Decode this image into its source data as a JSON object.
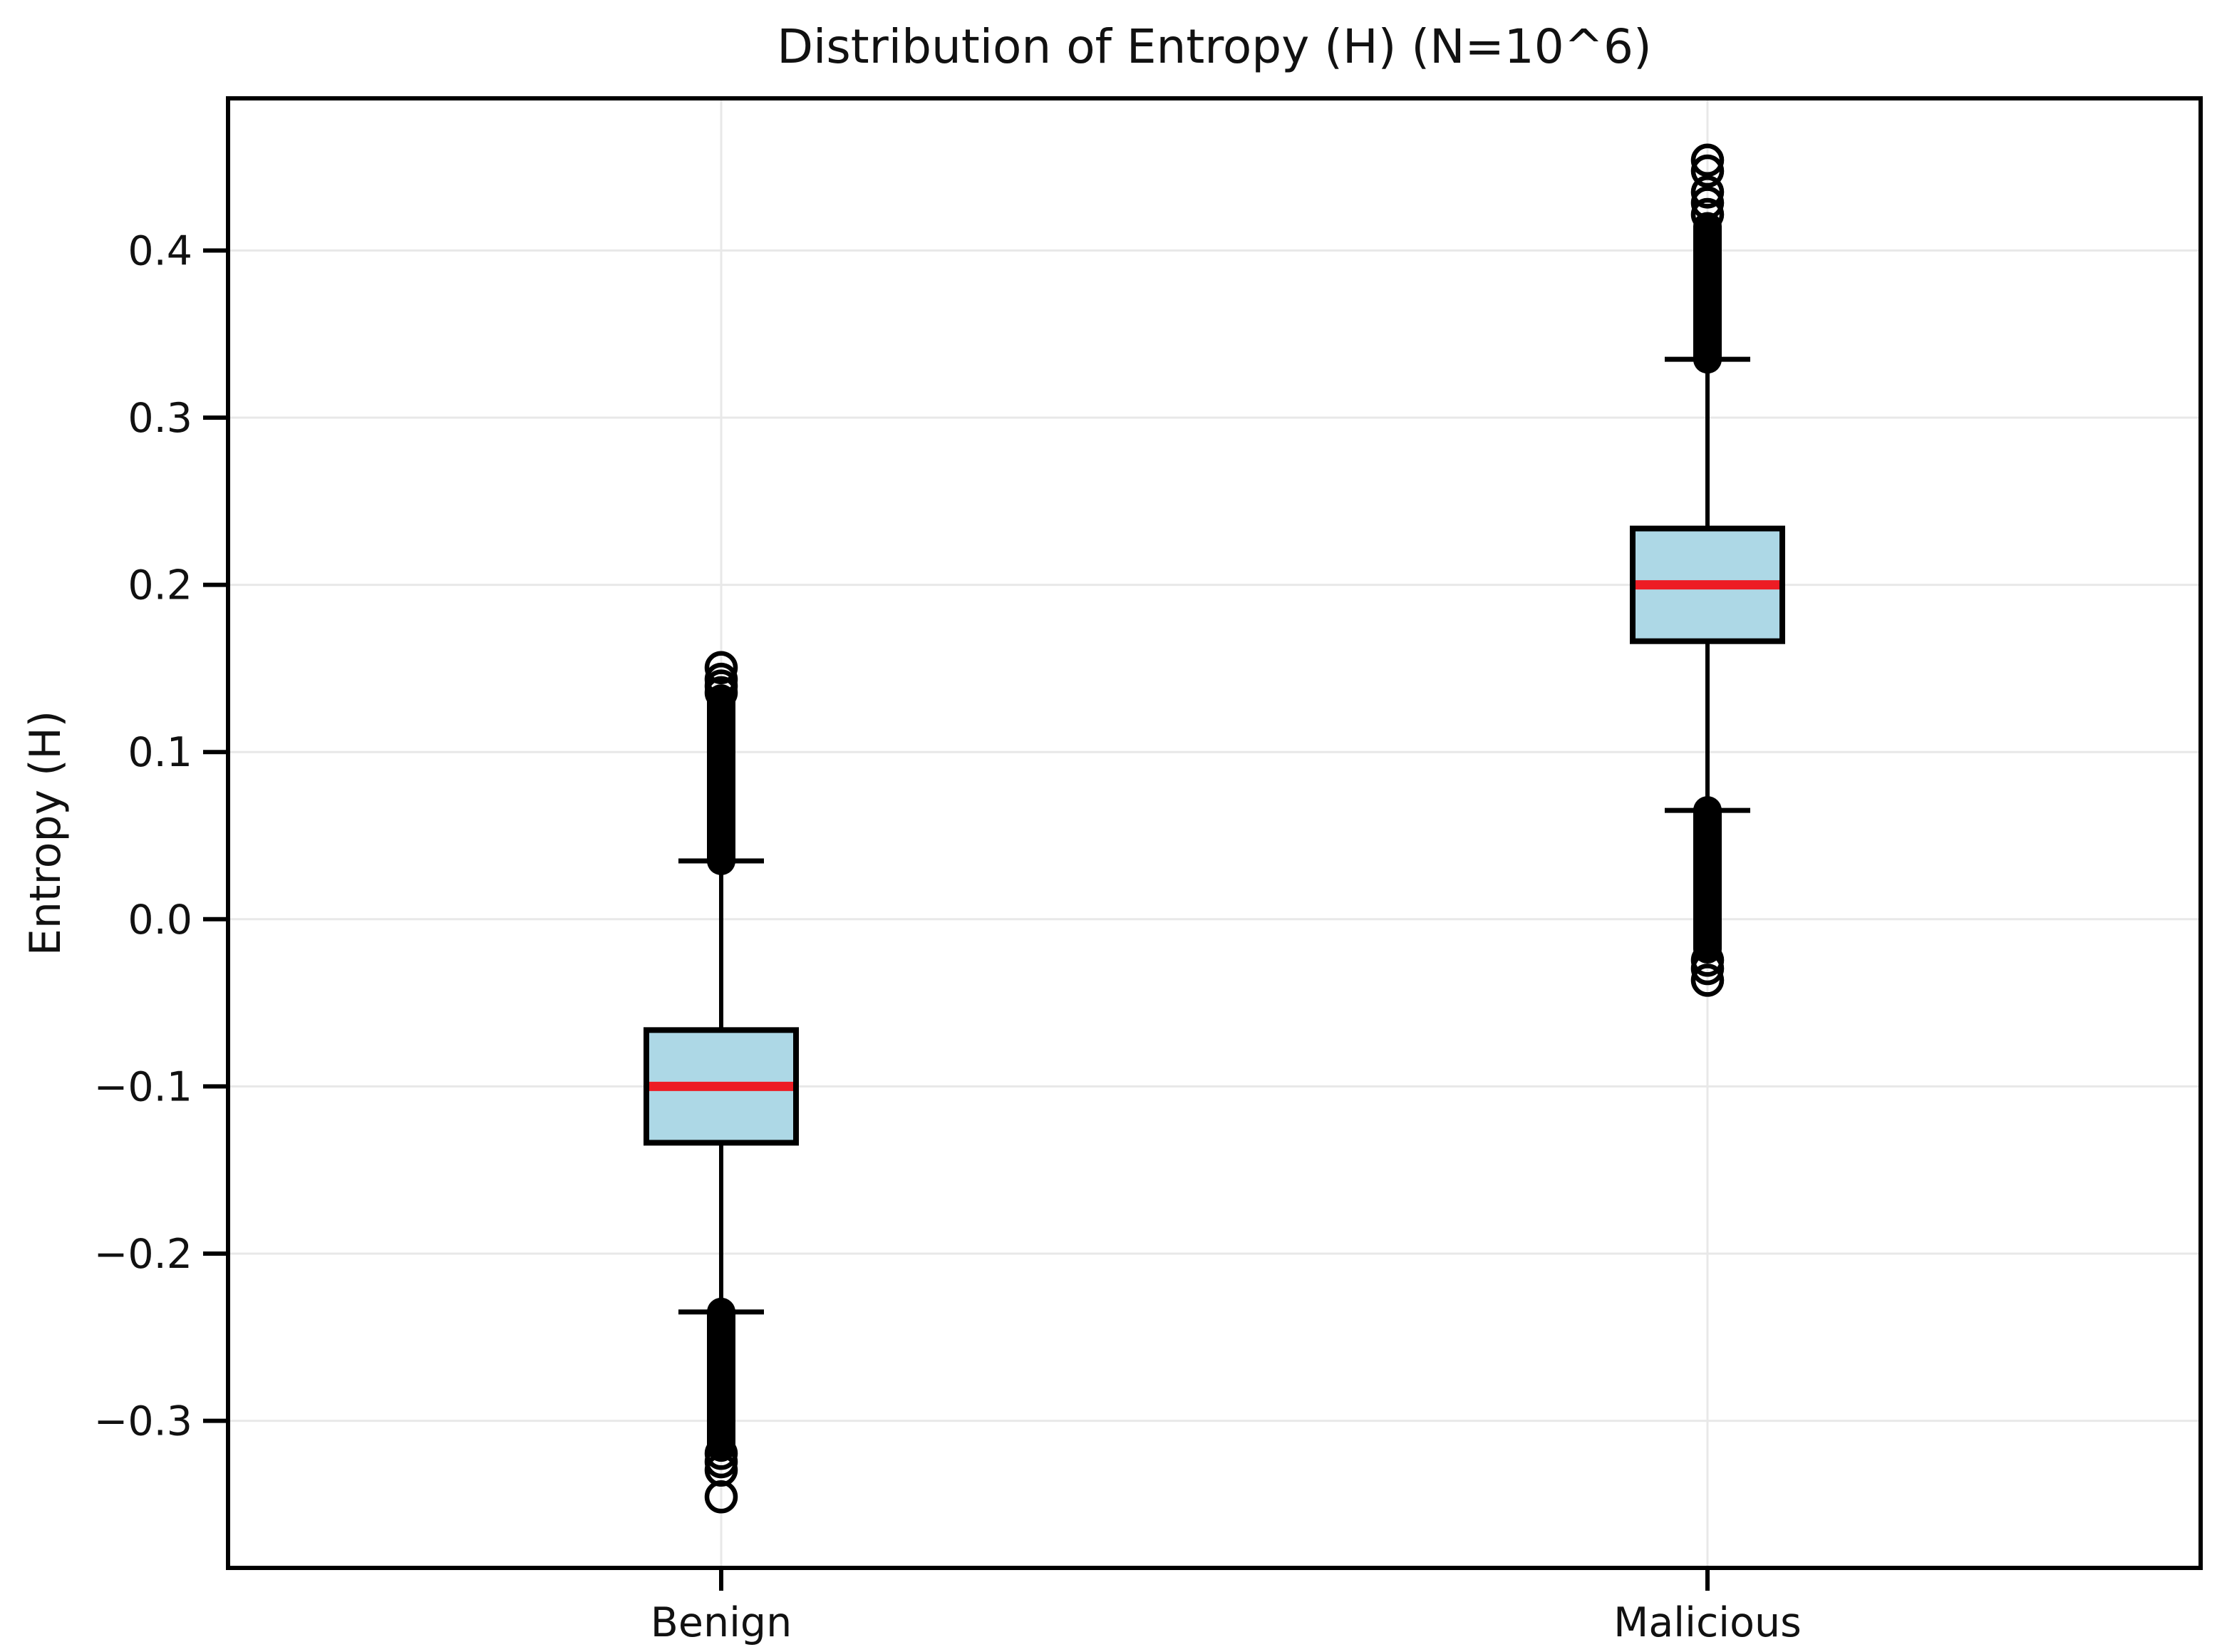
{
  "chart_data": {
    "type": "box",
    "title": "Distribution of Entropy (H) (N=10^6)",
    "ylabel": "Entropy (H)",
    "xlabel": "",
    "categories": [
      "Benign",
      "Malicious"
    ],
    "ylim": [
      -0.388,
      0.491
    ],
    "yticks": [
      0.4,
      0.3,
      0.2,
      0.1,
      0.0,
      -0.1,
      -0.2,
      -0.3
    ],
    "ytick_labels": [
      "0.4",
      "0.3",
      "0.2",
      "0.1",
      "0.0",
      "−0.1",
      "−0.2",
      "−0.3"
    ],
    "grid": true,
    "legend": "none",
    "colors": {
      "box_fill": "#add8e6",
      "box_edge": "#000000",
      "median": "#ed1c24",
      "whisker": "#000000",
      "outlier": "#000000",
      "grid": "#e8e8e8",
      "spine": "#000000",
      "text": "#111111"
    },
    "series": [
      {
        "name": "Benign",
        "median": -0.1,
        "q1": -0.1337,
        "q3": -0.0663,
        "whisker_low": -0.2349,
        "whisker_high": 0.0349,
        "outlier_band_high": [
          0.0349,
          0.132
        ],
        "outlier_points_high": [
          0.1355,
          0.1395,
          0.1435,
          0.1505
        ],
        "outlier_band_low": [
          -0.2349,
          -0.316
        ],
        "outlier_points_low": [
          -0.3195,
          -0.3245,
          -0.3295,
          -0.3455
        ]
      },
      {
        "name": "Malicious",
        "median": 0.2,
        "q1": 0.1663,
        "q3": 0.2337,
        "whisker_low": 0.0651,
        "whisker_high": 0.3349,
        "outlier_band_high": [
          0.3349,
          0.4145
        ],
        "outlier_points_high": [
          0.4215,
          0.4285,
          0.435,
          0.4475,
          0.454
        ],
        "outlier_band_low": [
          0.0651,
          -0.018
        ],
        "outlier_points_low": [
          -0.0245,
          -0.0295,
          -0.0365
        ]
      }
    ]
  }
}
